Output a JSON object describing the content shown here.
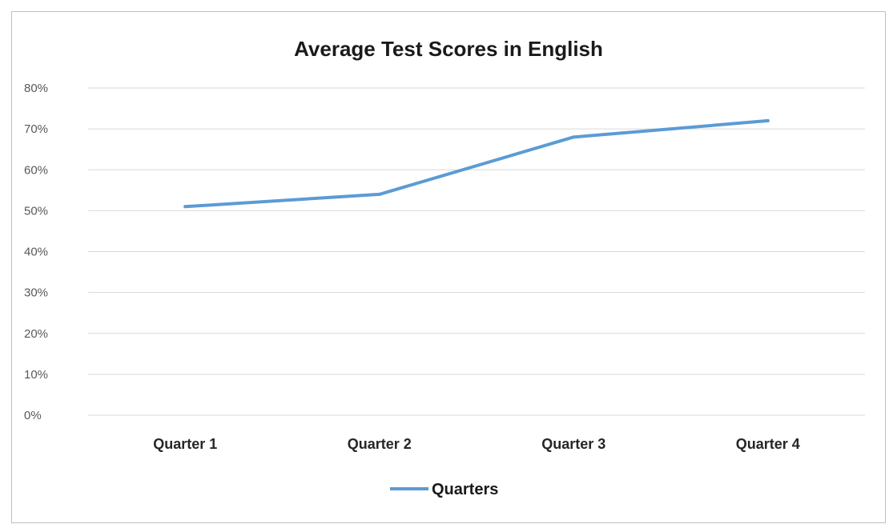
{
  "chart_data": {
    "type": "line",
    "title": "Average Test Scores in English",
    "xlabel": "",
    "ylabel": "",
    "categories": [
      "Quarter 1",
      "Quarter 2",
      "Quarter 3",
      "Quarter 4"
    ],
    "series": [
      {
        "name": "Quarters",
        "values": [
          0.51,
          0.54,
          0.68,
          0.72
        ],
        "color": "#5b9bd5"
      }
    ],
    "ylim": [
      0,
      0.8
    ],
    "yticks": [
      "0%",
      "10%",
      "20%",
      "30%",
      "40%",
      "50%",
      "60%",
      "70%",
      "80%"
    ],
    "grid": true,
    "legend": "bottom"
  }
}
